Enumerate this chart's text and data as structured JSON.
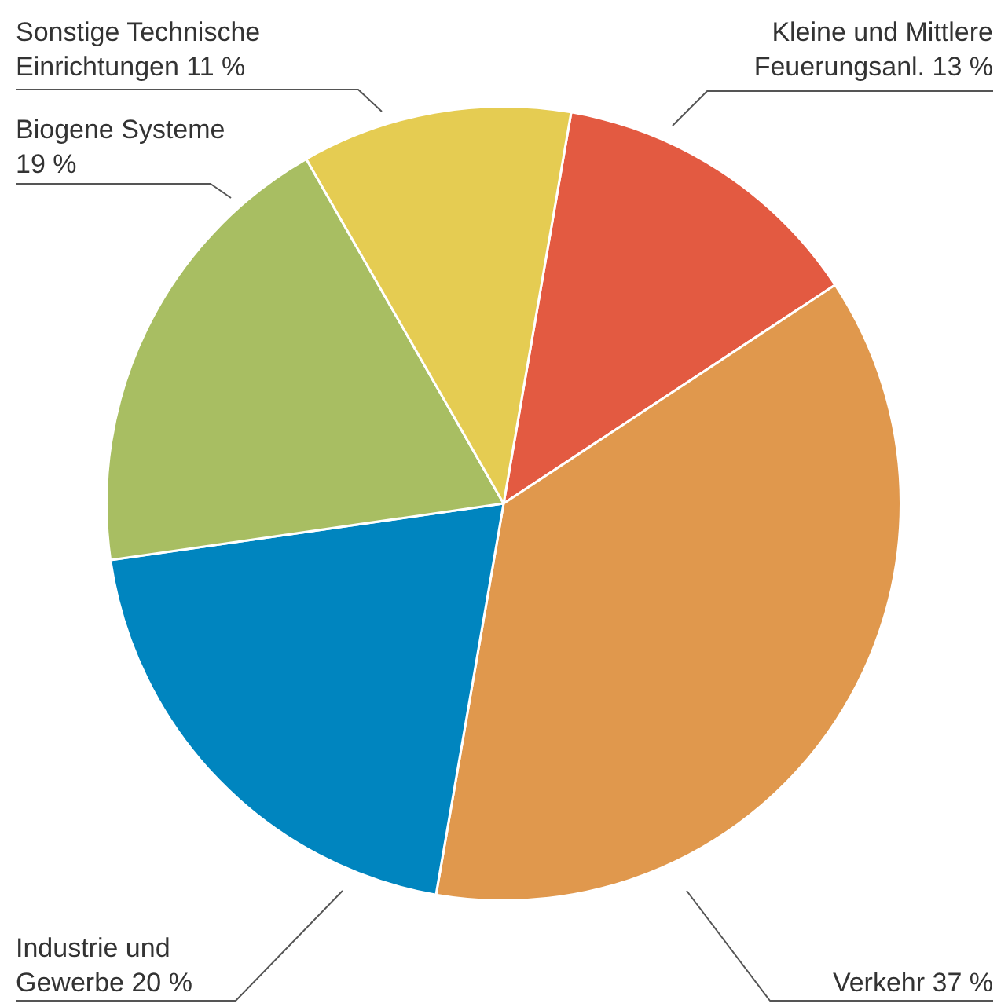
{
  "chart_data": {
    "type": "pie",
    "categories": [
      "Kleine und Mittlere Feuerungsanl.",
      "Verkehr",
      "Industrie und Gewerbe",
      "Biogene Systeme",
      "Sonstige Technische Einrichtungen"
    ],
    "values": [
      13,
      37,
      20,
      19,
      11
    ],
    "value_labels": [
      "13 %",
      "37 %",
      "20 %",
      "19 %",
      "11 %"
    ],
    "colors": [
      "#e35a41",
      "#e0984d",
      "#0085bf",
      "#a8be62",
      "#e5cc52"
    ],
    "legend": false
  }
}
